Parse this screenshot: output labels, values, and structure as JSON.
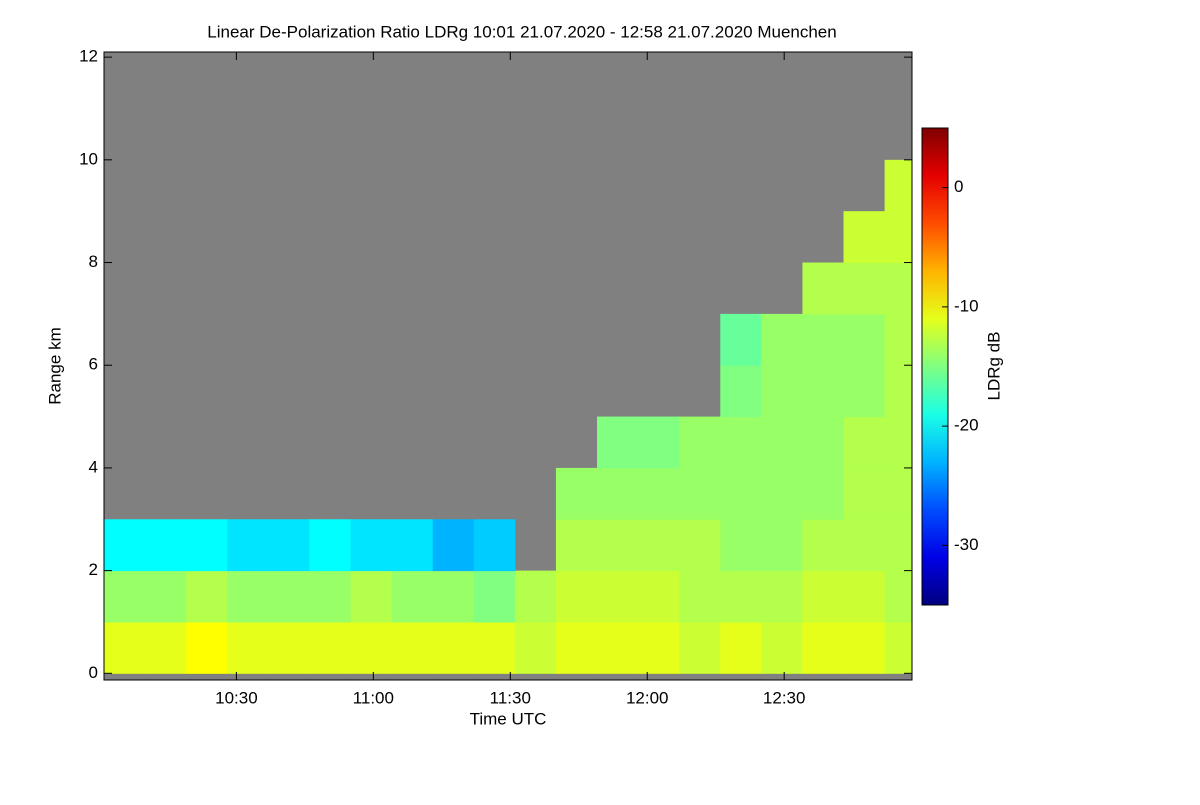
{
  "chart_data": {
    "type": "heatmap",
    "title": "Linear De-Polarization Ratio LDRg   10:01 21.07.2020 - 12:58 21.07.2020 Muenchen",
    "xlabel": "Time UTC",
    "ylabel": "Range km",
    "colorbar_label": "LDRg dB",
    "cmap": "jet",
    "background": "#808080",
    "x_edges": [
      601,
      610,
      619,
      628,
      637,
      646,
      655,
      664,
      673,
      682,
      691,
      700,
      709,
      718,
      727,
      736,
      745,
      754,
      763,
      772,
      778
    ],
    "y_edges": [
      0,
      1,
      2,
      3,
      4,
      5,
      6,
      7,
      8,
      9,
      10,
      11,
      12
    ],
    "z": [
      [
        -11,
        -11,
        -10,
        -11,
        -11,
        -11,
        -11,
        -11,
        -11,
        -11,
        -12,
        -11,
        -11,
        -11,
        -12,
        -11,
        -12,
        -11,
        -11,
        -12
      ],
      [
        -14,
        -14,
        -13,
        -14,
        -14,
        -14,
        -13,
        -14,
        -14,
        -15,
        -13,
        -12,
        -12,
        -12,
        -13,
        -13,
        -13,
        -12,
        -12,
        -13
      ],
      [
        -20,
        -20,
        -20,
        -21,
        -21,
        -20,
        -21,
        -21,
        -23,
        -22,
        null,
        -13,
        -13,
        -13,
        -13,
        -14,
        -14,
        -13,
        -13,
        -13
      ],
      [
        null,
        null,
        null,
        null,
        null,
        null,
        null,
        null,
        null,
        null,
        null,
        -14,
        -14,
        -14,
        -14,
        -14,
        -14,
        -14,
        -13,
        -13
      ],
      [
        null,
        null,
        null,
        null,
        null,
        null,
        null,
        null,
        null,
        null,
        null,
        null,
        -15,
        -15,
        -14,
        -14,
        -14,
        -14,
        -13,
        -13
      ],
      [
        null,
        null,
        null,
        null,
        null,
        null,
        null,
        null,
        null,
        null,
        null,
        null,
        null,
        null,
        null,
        -15,
        -14,
        -14,
        -14,
        -13
      ],
      [
        null,
        null,
        null,
        null,
        null,
        null,
        null,
        null,
        null,
        null,
        null,
        null,
        null,
        null,
        null,
        -16,
        -14,
        -14,
        -14,
        -13
      ],
      [
        null,
        null,
        null,
        null,
        null,
        null,
        null,
        null,
        null,
        null,
        null,
        null,
        null,
        null,
        null,
        null,
        null,
        -13,
        -13,
        -13
      ],
      [
        null,
        null,
        null,
        null,
        null,
        null,
        null,
        null,
        null,
        null,
        null,
        null,
        null,
        null,
        null,
        null,
        null,
        null,
        -12,
        -12
      ],
      [
        null,
        null,
        null,
        null,
        null,
        null,
        null,
        null,
        null,
        null,
        null,
        null,
        null,
        null,
        null,
        null,
        null,
        null,
        null,
        -12
      ],
      [
        null,
        null,
        null,
        null,
        null,
        null,
        null,
        null,
        null,
        null,
        null,
        null,
        null,
        null,
        null,
        null,
        null,
        null,
        null,
        null
      ],
      [
        null,
        null,
        null,
        null,
        null,
        null,
        null,
        null,
        null,
        null,
        null,
        null,
        null,
        null,
        null,
        null,
        null,
        null,
        null,
        null
      ]
    ],
    "xlim": [
      601,
      778
    ],
    "xticks": [
      {
        "value": 630,
        "label": "10:30"
      },
      {
        "value": 660,
        "label": "11:00"
      },
      {
        "value": 690,
        "label": "11:30"
      },
      {
        "value": 720,
        "label": "12:00"
      },
      {
        "value": 750,
        "label": "12:30"
      }
    ],
    "ylim": [
      -0.13,
      12.1
    ],
    "yticks": [
      0,
      2,
      4,
      6,
      8,
      10,
      12
    ],
    "clim": [
      -35,
      5
    ],
    "cticks": [
      -30,
      -20,
      -10,
      0
    ]
  }
}
